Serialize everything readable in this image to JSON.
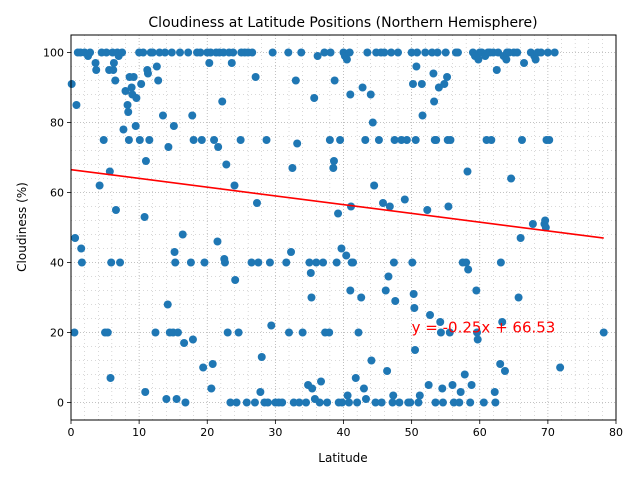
{
  "chart_data": {
    "type": "scatter",
    "title": "Cloudiness at Latitude Positions (Northern Hemisphere)",
    "xlabel": "Latitude",
    "ylabel": "Cloudiness (%)",
    "xlim": [
      0,
      80
    ],
    "ylim": [
      -5,
      105
    ],
    "xticks": [
      0,
      10,
      20,
      30,
      40,
      50,
      60,
      70,
      80
    ],
    "yticks": [
      0,
      20,
      40,
      60,
      80,
      100
    ],
    "grid": "dotted major and minor",
    "marker_color": "#1f77b4",
    "line_color": "#ff0000",
    "regression": {
      "slope": -0.25,
      "intercept": 66.53,
      "x_range": [
        0,
        78.2
      ],
      "equation": "y = -0.25x + 66.53",
      "label_x": 50,
      "label_y": 20
    },
    "points": [
      [
        0.1,
        91
      ],
      [
        0.5,
        20
      ],
      [
        0.6,
        47
      ],
      [
        0.8,
        85
      ],
      [
        1,
        100
      ],
      [
        1.4,
        100
      ],
      [
        1.5,
        44
      ],
      [
        1.6,
        40
      ],
      [
        2,
        100
      ],
      [
        2.5,
        99
      ],
      [
        2.8,
        100
      ],
      [
        3.6,
        97
      ],
      [
        3.7,
        95
      ],
      [
        4.2,
        62
      ],
      [
        4.5,
        100
      ],
      [
        4.8,
        75
      ],
      [
        5,
        20
      ],
      [
        5.2,
        100
      ],
      [
        5.4,
        20
      ],
      [
        5.6,
        95
      ],
      [
        5.7,
        66
      ],
      [
        5.8,
        7
      ],
      [
        5.9,
        40
      ],
      [
        6.1,
        100
      ],
      [
        6.2,
        95
      ],
      [
        6.3,
        97
      ],
      [
        6.5,
        92
      ],
      [
        6.6,
        55
      ],
      [
        6.8,
        100
      ],
      [
        7,
        99
      ],
      [
        7.2,
        40
      ],
      [
        7.5,
        100
      ],
      [
        7.7,
        78
      ],
      [
        8,
        89
      ],
      [
        8.3,
        85
      ],
      [
        8.4,
        83
      ],
      [
        8.5,
        75
      ],
      [
        8.6,
        93
      ],
      [
        8.9,
        90
      ],
      [
        9,
        88
      ],
      [
        9.2,
        93
      ],
      [
        9.5,
        79
      ],
      [
        9.6,
        87
      ],
      [
        10,
        100
      ],
      [
        10.1,
        75
      ],
      [
        10.3,
        91
      ],
      [
        10.6,
        100
      ],
      [
        10.8,
        53
      ],
      [
        10.9,
        3
      ],
      [
        11,
        69
      ],
      [
        11.2,
        95
      ],
      [
        11.3,
        94
      ],
      [
        11.5,
        75
      ],
      [
        11.7,
        100
      ],
      [
        12,
        100
      ],
      [
        12.4,
        20
      ],
      [
        12.6,
        96
      ],
      [
        12.8,
        92
      ],
      [
        13,
        100
      ],
      [
        13.5,
        82
      ],
      [
        13.8,
        100
      ],
      [
        14,
        1
      ],
      [
        14.2,
        28
      ],
      [
        14.3,
        73
      ],
      [
        14.5,
        20
      ],
      [
        14.8,
        100
      ],
      [
        15,
        20
      ],
      [
        15.1,
        79
      ],
      [
        15.2,
        43
      ],
      [
        15.3,
        40
      ],
      [
        15.5,
        1
      ],
      [
        15.7,
        20
      ],
      [
        16,
        100
      ],
      [
        16.4,
        48
      ],
      [
        16.6,
        17
      ],
      [
        16.8,
        0
      ],
      [
        17.2,
        100
      ],
      [
        17.6,
        40
      ],
      [
        17.8,
        82
      ],
      [
        17.9,
        18
      ],
      [
        18,
        75
      ],
      [
        18.5,
        100
      ],
      [
        19,
        100
      ],
      [
        19.2,
        75
      ],
      [
        19.4,
        10
      ],
      [
        19.6,
        40
      ],
      [
        20,
        100
      ],
      [
        20.3,
        97
      ],
      [
        20.5,
        100
      ],
      [
        20.6,
        4
      ],
      [
        20.8,
        11
      ],
      [
        21,
        75
      ],
      [
        21.3,
        100
      ],
      [
        21.5,
        46
      ],
      [
        21.6,
        73
      ],
      [
        21.8,
        100
      ],
      [
        22.2,
        86
      ],
      [
        22.4,
        100
      ],
      [
        22.5,
        41
      ],
      [
        22.6,
        40
      ],
      [
        22.8,
        68
      ],
      [
        23,
        20
      ],
      [
        23.2,
        100
      ],
      [
        23.4,
        0
      ],
      [
        23.6,
        97
      ],
      [
        23.8,
        100
      ],
      [
        24,
        62
      ],
      [
        24.1,
        35
      ],
      [
        24.3,
        0
      ],
      [
        24.6,
        20
      ],
      [
        24.9,
        75
      ],
      [
        25,
        100
      ],
      [
        25.5,
        100
      ],
      [
        25.8,
        0
      ],
      [
        26,
        100
      ],
      [
        26.5,
        40
      ],
      [
        26.6,
        100
      ],
      [
        27,
        0
      ],
      [
        27.1,
        93
      ],
      [
        27.3,
        57
      ],
      [
        27.5,
        40
      ],
      [
        27.8,
        3
      ],
      [
        28,
        13
      ],
      [
        28.4,
        0
      ],
      [
        28.7,
        75
      ],
      [
        28.9,
        0
      ],
      [
        29.2,
        40
      ],
      [
        29.4,
        22
      ],
      [
        29.6,
        100
      ],
      [
        30,
        0
      ],
      [
        30.5,
        0
      ],
      [
        31,
        0
      ],
      [
        31.6,
        40
      ],
      [
        31.9,
        100
      ],
      [
        32,
        20
      ],
      [
        32.3,
        43
      ],
      [
        32.5,
        67
      ],
      [
        32.7,
        0
      ],
      [
        33,
        92
      ],
      [
        33.2,
        74
      ],
      [
        33.5,
        0
      ],
      [
        33.8,
        100
      ],
      [
        34,
        20
      ],
      [
        34.5,
        0
      ],
      [
        34.8,
        5
      ],
      [
        35,
        40
      ],
      [
        35.2,
        37
      ],
      [
        35.3,
        30
      ],
      [
        35.4,
        4
      ],
      [
        35.7,
        87
      ],
      [
        35.8,
        1
      ],
      [
        36,
        40
      ],
      [
        36.2,
        99
      ],
      [
        36.5,
        0
      ],
      [
        36.7,
        6
      ],
      [
        37,
        40
      ],
      [
        37.2,
        100
      ],
      [
        37.3,
        20
      ],
      [
        37.6,
        0
      ],
      [
        37.9,
        20
      ],
      [
        38,
        75
      ],
      [
        38.1,
        100
      ],
      [
        38.5,
        67
      ],
      [
        38.6,
        69
      ],
      [
        38.7,
        92
      ],
      [
        39,
        40
      ],
      [
        39.2,
        54
      ],
      [
        39.3,
        0
      ],
      [
        39.5,
        75
      ],
      [
        39.7,
        44
      ],
      [
        39.8,
        0
      ],
      [
        40,
        100
      ],
      [
        40.2,
        99
      ],
      [
        40.4,
        42
      ],
      [
        40.5,
        98
      ],
      [
        40.6,
        2
      ],
      [
        40.8,
        0
      ],
      [
        40.9,
        100
      ],
      [
        41,
        88
      ],
      [
        41,
        32
      ],
      [
        41.1,
        56
      ],
      [
        41.2,
        40
      ],
      [
        41.4,
        40
      ],
      [
        41.8,
        7
      ],
      [
        42,
        0
      ],
      [
        42.2,
        20
      ],
      [
        42.6,
        30
      ],
      [
        42.8,
        90
      ],
      [
        43,
        4
      ],
      [
        43.2,
        75
      ],
      [
        43.3,
        1
      ],
      [
        43.5,
        100
      ],
      [
        44,
        88
      ],
      [
        44.1,
        12
      ],
      [
        44.3,
        80
      ],
      [
        44.5,
        62
      ],
      [
        44.7,
        0
      ],
      [
        44.8,
        100
      ],
      [
        45.2,
        75
      ],
      [
        45.5,
        100
      ],
      [
        45.6,
        0
      ],
      [
        45.8,
        57
      ],
      [
        46,
        100
      ],
      [
        46.2,
        32
      ],
      [
        46.4,
        9
      ],
      [
        46.6,
        36
      ],
      [
        46.8,
        56
      ],
      [
        47,
        100
      ],
      [
        47.2,
        0
      ],
      [
        47.3,
        2
      ],
      [
        47.4,
        40
      ],
      [
        47.5,
        75
      ],
      [
        47.6,
        29
      ],
      [
        48,
        100
      ],
      [
        48.2,
        0
      ],
      [
        48.5,
        75
      ],
      [
        49,
        58
      ],
      [
        49.3,
        75
      ],
      [
        49.5,
        0
      ],
      [
        49.8,
        0
      ],
      [
        50,
        100
      ],
      [
        50.1,
        40
      ],
      [
        50.2,
        91
      ],
      [
        50.3,
        31
      ],
      [
        50.4,
        27
      ],
      [
        50.5,
        15
      ],
      [
        50.6,
        75
      ],
      [
        50.7,
        96
      ],
      [
        50.8,
        100
      ],
      [
        51,
        0
      ],
      [
        51.2,
        2
      ],
      [
        51.5,
        91
      ],
      [
        51.6,
        82
      ],
      [
        52,
        100
      ],
      [
        52.3,
        55
      ],
      [
        52.5,
        5
      ],
      [
        52.7,
        25
      ],
      [
        53,
        100
      ],
      [
        53.2,
        94
      ],
      [
        53.3,
        86
      ],
      [
        53.4,
        75
      ],
      [
        53.5,
        0
      ],
      [
        53.6,
        75
      ],
      [
        53.8,
        100
      ],
      [
        54,
        90
      ],
      [
        54.2,
        23
      ],
      [
        54.3,
        20
      ],
      [
        54.5,
        4
      ],
      [
        54.6,
        0
      ],
      [
        54.8,
        91
      ],
      [
        55,
        100
      ],
      [
        55.2,
        93
      ],
      [
        55.3,
        75
      ],
      [
        55.4,
        56
      ],
      [
        55.6,
        20
      ],
      [
        55.7,
        75
      ],
      [
        56,
        5
      ],
      [
        56.2,
        0
      ],
      [
        56.5,
        100
      ],
      [
        56.8,
        100
      ],
      [
        57,
        0
      ],
      [
        57.2,
        3
      ],
      [
        57.5,
        40
      ],
      [
        57.8,
        8
      ],
      [
        58,
        40
      ],
      [
        58.2,
        66
      ],
      [
        58.3,
        38
      ],
      [
        58.6,
        0
      ],
      [
        58.8,
        5
      ],
      [
        59,
        100
      ],
      [
        59.3,
        99
      ],
      [
        59.5,
        32
      ],
      [
        59.6,
        20
      ],
      [
        59.7,
        18
      ],
      [
        59.8,
        98
      ],
      [
        60,
        100
      ],
      [
        60.3,
        100
      ],
      [
        60.6,
        0
      ],
      [
        60.8,
        99
      ],
      [
        61,
        75
      ],
      [
        61.2,
        100
      ],
      [
        61.5,
        100
      ],
      [
        61.7,
        75
      ],
      [
        62,
        100
      ],
      [
        62.2,
        3
      ],
      [
        62.3,
        0
      ],
      [
        62.5,
        95
      ],
      [
        62.7,
        100
      ],
      [
        63,
        11
      ],
      [
        63.1,
        40
      ],
      [
        63.3,
        23
      ],
      [
        63.5,
        99
      ],
      [
        63.7,
        9
      ],
      [
        63.9,
        98
      ],
      [
        64,
        100
      ],
      [
        64.3,
        100
      ],
      [
        64.6,
        64
      ],
      [
        65,
        100
      ],
      [
        65.5,
        100
      ],
      [
        65.7,
        30
      ],
      [
        66,
        47
      ],
      [
        66.2,
        75
      ],
      [
        66.5,
        97
      ],
      [
        67.5,
        100
      ],
      [
        67.8,
        51
      ],
      [
        68,
        99
      ],
      [
        68.2,
        98
      ],
      [
        68.5,
        100
      ],
      [
        69,
        100
      ],
      [
        69.5,
        51
      ],
      [
        69.6,
        52
      ],
      [
        69.7,
        50
      ],
      [
        69.8,
        75
      ],
      [
        70,
        100
      ],
      [
        70.2,
        75
      ],
      [
        71,
        100
      ],
      [
        71.8,
        10
      ],
      [
        78.2,
        20
      ]
    ]
  }
}
